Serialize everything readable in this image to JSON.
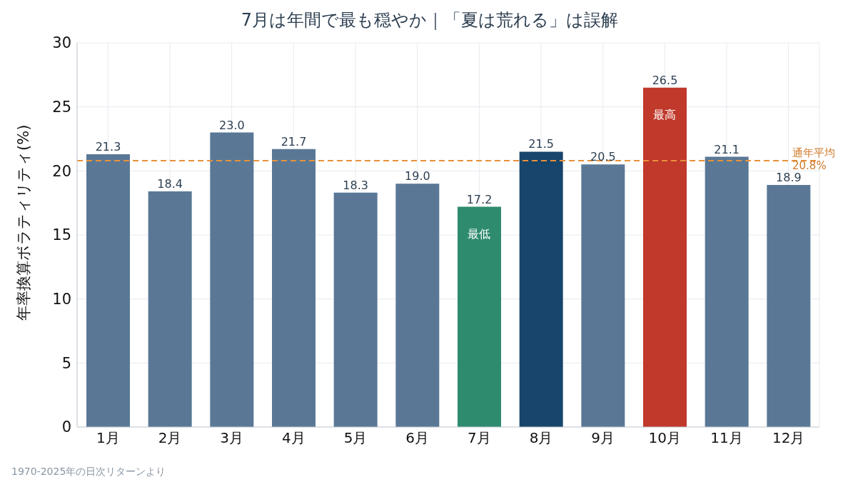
{
  "chart_data": {
    "type": "bar",
    "title": "7月は年間で最も穏やか｜「夏は荒れる」は誤解",
    "ylabel": "年率換算ボラティリティ(%)",
    "categories": [
      "1月",
      "2月",
      "3月",
      "4月",
      "5月",
      "6月",
      "7月",
      "8月",
      "9月",
      "10月",
      "11月",
      "12月"
    ],
    "values": [
      21.3,
      18.4,
      23.0,
      21.7,
      18.3,
      19.0,
      17.2,
      21.5,
      20.5,
      26.5,
      21.1,
      18.9
    ],
    "value_labels": [
      "21.3",
      "18.4",
      "23.0",
      "21.7",
      "18.3",
      "19.0",
      "17.2",
      "21.5",
      "20.5",
      "26.5",
      "21.1",
      "18.9"
    ],
    "colors": [
      "#5a7896",
      "#5a7896",
      "#5a7896",
      "#5a7896",
      "#5a7896",
      "#5a7896",
      "#2e8b6e",
      "#17456b",
      "#5a7896",
      "#c0392b",
      "#5a7896",
      "#5a7896"
    ],
    "ylim": [
      0,
      30
    ],
    "yticks": [
      0,
      5,
      10,
      15,
      20,
      25,
      30
    ],
    "grid": true,
    "ref_lines": [
      {
        "axis": "y",
        "value": 20.8,
        "label": "通年平均 20.8%",
        "color": "#e8913a",
        "line_style": "dashed"
      }
    ],
    "annotations": [
      {
        "text": "最高",
        "x": "10月",
        "y": 26.5
      },
      {
        "text": "最低",
        "x": "7月",
        "y": 17.2
      },
      "1970-2025年の日次リターンより"
    ]
  }
}
